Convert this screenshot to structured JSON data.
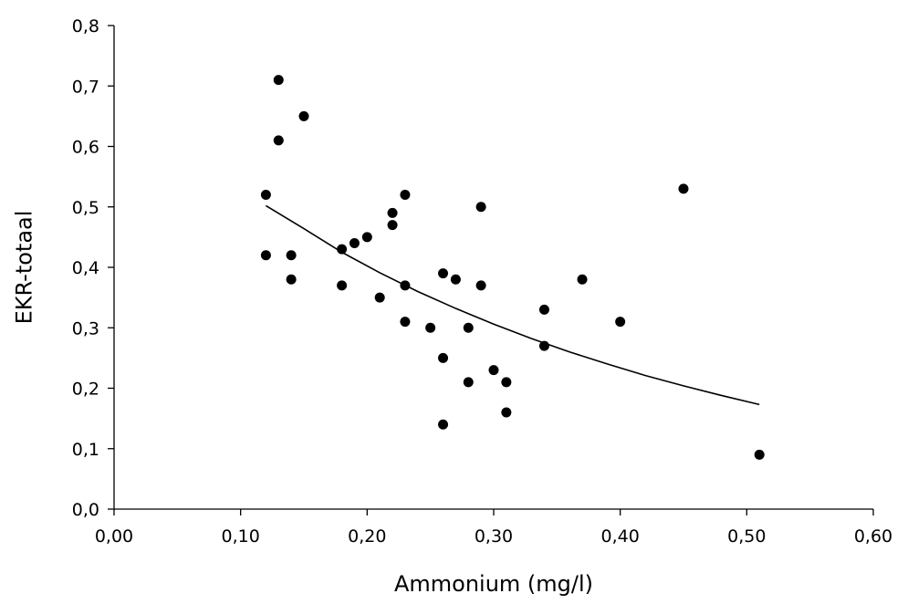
{
  "chart_data": {
    "type": "scatter",
    "title": "",
    "xlabel": "Ammonium (mg/l)",
    "ylabel": "EKR-totaal",
    "xlim": [
      0,
      0.6
    ],
    "ylim": [
      0,
      0.8
    ],
    "x_ticks": [
      "0,00",
      "0,10",
      "0,20",
      "0,30",
      "0,40",
      "0,50",
      "0,60"
    ],
    "y_ticks": [
      "0,0",
      "0,1",
      "0,2",
      "0,3",
      "0,4",
      "0,5",
      "0,6",
      "0,7",
      "0,8"
    ],
    "grid": false,
    "legend": "none",
    "series": [
      {
        "marker": "circle",
        "color": "#000000",
        "points": [
          [
            0.12,
            0.52
          ],
          [
            0.12,
            0.42
          ],
          [
            0.13,
            0.71
          ],
          [
            0.13,
            0.61
          ],
          [
            0.14,
            0.42
          ],
          [
            0.14,
            0.38
          ],
          [
            0.15,
            0.65
          ],
          [
            0.18,
            0.43
          ],
          [
            0.18,
            0.37
          ],
          [
            0.19,
            0.44
          ],
          [
            0.2,
            0.45
          ],
          [
            0.21,
            0.35
          ],
          [
            0.22,
            0.49
          ],
          [
            0.22,
            0.47
          ],
          [
            0.23,
            0.52
          ],
          [
            0.23,
            0.37
          ],
          [
            0.23,
            0.31
          ],
          [
            0.25,
            0.3
          ],
          [
            0.26,
            0.39
          ],
          [
            0.26,
            0.25
          ],
          [
            0.26,
            0.14
          ],
          [
            0.27,
            0.38
          ],
          [
            0.28,
            0.3
          ],
          [
            0.28,
            0.21
          ],
          [
            0.29,
            0.5
          ],
          [
            0.29,
            0.37
          ],
          [
            0.3,
            0.23
          ],
          [
            0.31,
            0.21
          ],
          [
            0.31,
            0.16
          ],
          [
            0.34,
            0.33
          ],
          [
            0.34,
            0.27
          ],
          [
            0.37,
            0.38
          ],
          [
            0.4,
            0.31
          ],
          [
            0.45,
            0.53
          ],
          [
            0.51,
            0.09
          ]
        ]
      }
    ],
    "trendline": {
      "color": "#000000",
      "points": [
        [
          0.12,
          0.502
        ],
        [
          0.15,
          0.464
        ],
        [
          0.18,
          0.425
        ],
        [
          0.21,
          0.391
        ],
        [
          0.24,
          0.36
        ],
        [
          0.27,
          0.332
        ],
        [
          0.3,
          0.306
        ],
        [
          0.33,
          0.282
        ],
        [
          0.36,
          0.26
        ],
        [
          0.39,
          0.24
        ],
        [
          0.42,
          0.221
        ],
        [
          0.45,
          0.204
        ],
        [
          0.48,
          0.188
        ],
        [
          0.51,
          0.173
        ]
      ]
    }
  }
}
